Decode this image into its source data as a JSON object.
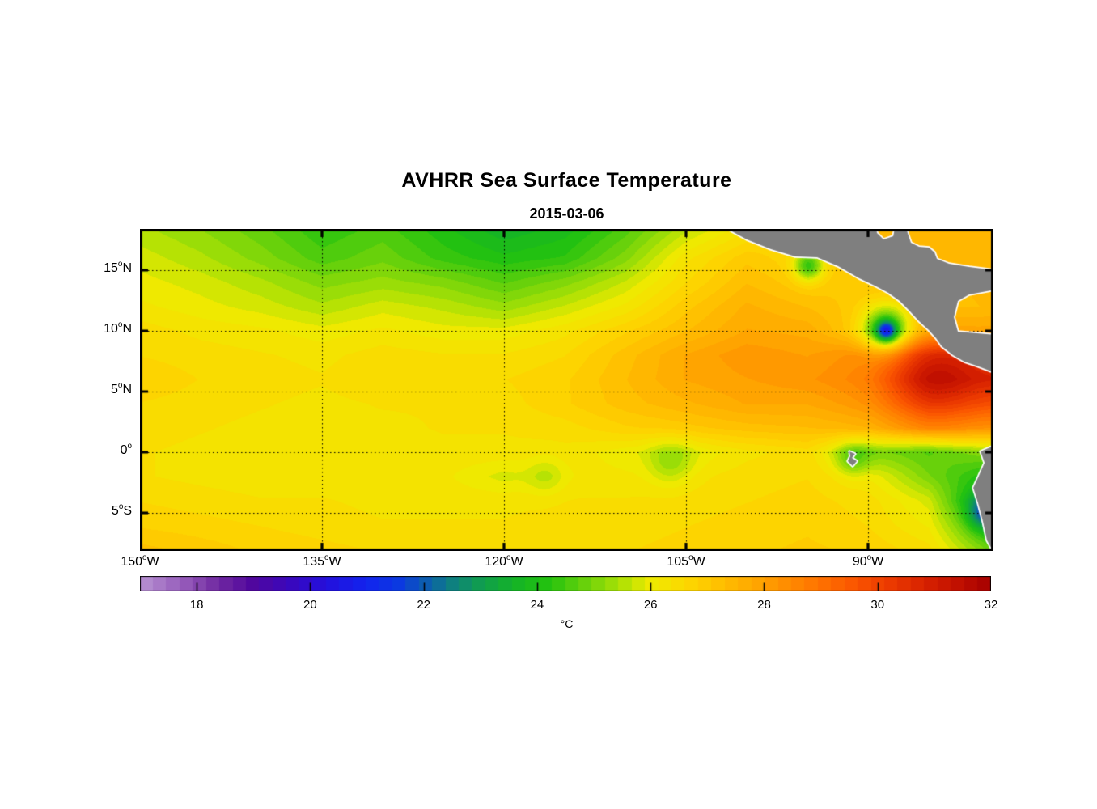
{
  "figure": {
    "title": "AVHRR Sea Surface Temperature",
    "date": "2015-03-06",
    "background": "#ffffff",
    "land_color": "#7f7f7f",
    "coast_color": "#ffffff",
    "frame_color": "#000000"
  },
  "chart_data": {
    "type": "heatmap",
    "title": "AVHRR Sea Surface Temperature",
    "subtitle": "2015-03-06",
    "units": "°C",
    "lon_range": [
      -150,
      -79.67
    ],
    "lat_range": [
      -8.13,
      18.4
    ],
    "grid_on": true,
    "grid_lons": [
      -135,
      -120,
      -105,
      -90
    ],
    "grid_lats": [
      15,
      10,
      5,
      0,
      -5
    ],
    "x_ticks": [
      {
        "num": "150",
        "sup": "o",
        "dir": "W",
        "lon": -150
      },
      {
        "num": "135",
        "sup": "o",
        "dir": "W",
        "lon": -135
      },
      {
        "num": "120",
        "sup": "o",
        "dir": "W",
        "lon": -120
      },
      {
        "num": "105",
        "sup": "o",
        "dir": "W",
        "lon": -105
      },
      {
        "num": "90",
        "sup": "o",
        "dir": "W",
        "lon": -90
      }
    ],
    "y_ticks": [
      {
        "num": "15",
        "sup": "o",
        "dir": "N",
        "lat": 15
      },
      {
        "num": "10",
        "sup": "o",
        "dir": "N",
        "lat": 10
      },
      {
        "num": "5",
        "sup": "o",
        "dir": "N",
        "lat": 5
      },
      {
        "num": "0",
        "sup": "o",
        "dir": "",
        "lat": 0
      },
      {
        "num": "5",
        "sup": "o",
        "dir": "S",
        "lat": -5
      }
    ],
    "colorbar": {
      "min": 17,
      "max": 32,
      "levels": 64,
      "ticks": [
        18,
        20,
        22,
        24,
        26,
        28,
        30,
        32
      ],
      "label": "°C"
    },
    "colormap": [
      [
        17.0,
        "#b792d2"
      ],
      [
        17.8,
        "#9459b9"
      ],
      [
        18.4,
        "#6f28a0"
      ],
      [
        19.0,
        "#50079e"
      ],
      [
        19.6,
        "#3b07bb"
      ],
      [
        20.3,
        "#2410dc"
      ],
      [
        21.0,
        "#1224ee"
      ],
      [
        21.6,
        "#0b3ae0"
      ],
      [
        22.0,
        "#0c59b4"
      ],
      [
        22.5,
        "#0e8080"
      ],
      [
        23.0,
        "#109c50"
      ],
      [
        23.6,
        "#14b327"
      ],
      [
        24.2,
        "#23c20f"
      ],
      [
        24.8,
        "#62d00c"
      ],
      [
        25.4,
        "#a3df06"
      ],
      [
        26.0,
        "#eeea00"
      ],
      [
        26.6,
        "#fcd900"
      ],
      [
        27.2,
        "#ffc100"
      ],
      [
        27.8,
        "#ffa800"
      ],
      [
        28.4,
        "#ff8d00"
      ],
      [
        29.0,
        "#ff7100"
      ],
      [
        29.6,
        "#fa5500"
      ],
      [
        30.2,
        "#ec3b00"
      ],
      [
        30.8,
        "#d92300"
      ],
      [
        31.4,
        "#c21000"
      ],
      [
        32.0,
        "#a60000"
      ]
    ],
    "sst_grid": {
      "lons": [
        -150,
        -145,
        -140,
        -135,
        -130,
        -125,
        -120,
        -115,
        -110,
        -105,
        -100,
        -95,
        -90,
        -85,
        -80
      ],
      "lats": [
        18.4,
        16,
        14,
        12,
        10,
        8,
        6,
        4,
        2,
        0,
        -2,
        -4,
        -6,
        -8.2
      ],
      "values": [
        [
          25.5,
          25.2,
          24.8,
          24.3,
          24.6,
          24.1,
          23.6,
          23.9,
          24.6,
          25.6,
          26.3,
          27.0,
          27.4,
          27.4,
          27.4
        ],
        [
          25.8,
          25.5,
          25.1,
          24.6,
          24.9,
          24.4,
          24.1,
          24.3,
          25.1,
          26.3,
          27.0,
          26.6,
          27.2,
          27.3,
          27.4
        ],
        [
          26.0,
          25.8,
          25.5,
          25.1,
          25.3,
          25.1,
          24.7,
          25.1,
          25.7,
          26.6,
          27.3,
          26.9,
          27.1,
          27.2,
          27.4
        ],
        [
          26.2,
          26.0,
          25.8,
          25.5,
          25.8,
          25.6,
          25.3,
          25.7,
          26.2,
          27.0,
          27.6,
          27.3,
          26.9,
          27.1,
          27.3
        ],
        [
          26.5,
          26.3,
          26.2,
          26.0,
          26.2,
          26.0,
          26.0,
          26.3,
          26.8,
          27.3,
          27.8,
          27.7,
          26.8,
          27.3,
          27.8
        ],
        [
          26.6,
          26.5,
          26.4,
          26.3,
          26.5,
          26.4,
          26.4,
          26.6,
          27.2,
          27.8,
          28.2,
          28.0,
          28.4,
          29.3,
          30.2
        ],
        [
          26.8,
          26.6,
          26.5,
          26.4,
          26.6,
          26.5,
          26.6,
          26.8,
          27.3,
          27.8,
          28.0,
          28.2,
          28.6,
          29.8,
          30.6
        ],
        [
          26.6,
          26.5,
          26.4,
          26.3,
          26.4,
          26.4,
          26.5,
          26.8,
          27.2,
          27.5,
          27.8,
          27.8,
          28.2,
          29.2,
          29.6
        ],
        [
          26.5,
          26.4,
          26.3,
          26.3,
          26.3,
          26.4,
          26.4,
          26.5,
          26.8,
          27.0,
          27.2,
          27.3,
          27.5,
          28.2,
          28.2
        ],
        [
          26.4,
          26.3,
          26.3,
          26.2,
          26.2,
          26.3,
          26.3,
          26.3,
          26.0,
          25.9,
          26.3,
          26.5,
          25.1,
          24.6,
          25.2
        ],
        [
          26.4,
          26.3,
          26.2,
          26.2,
          26.2,
          26.2,
          25.8,
          26.2,
          26.2,
          26.3,
          26.5,
          26.6,
          26.2,
          25.0,
          24.0
        ],
        [
          26.6,
          26.5,
          26.4,
          26.4,
          26.3,
          26.3,
          26.3,
          26.4,
          26.4,
          26.5,
          26.6,
          26.7,
          26.5,
          25.8,
          23.0
        ],
        [
          26.8,
          26.7,
          26.6,
          26.5,
          26.4,
          26.4,
          26.4,
          26.5,
          26.5,
          26.6,
          26.7,
          26.8,
          26.6,
          26.1,
          24.0
        ],
        [
          27.2,
          27.0,
          26.8,
          26.7,
          26.6,
          26.5,
          26.6,
          26.6,
          26.6,
          26.7,
          26.8,
          26.9,
          26.8,
          26.5,
          25.0
        ]
      ]
    },
    "features": [
      {
        "name": "tehuantepec-cool",
        "lon": -94.9,
        "lat": 15.35,
        "amp": -2.3,
        "r": 0.85
      },
      {
        "name": "papagayo-cool",
        "lon": -88.4,
        "lat": 10.1,
        "amp": -3.2,
        "r": 1.35
      },
      {
        "name": "papagayo-core",
        "lon": -88.5,
        "lat": 10.0,
        "amp": -3.4,
        "r": 0.55
      },
      {
        "name": "costa-rica-warm",
        "lon": -84.8,
        "lat": 6.3,
        "amp": 1.6,
        "r": 2.6
      },
      {
        "name": "peru-upwelling",
        "lon": -80.4,
        "lat": -5.0,
        "amp": -2.2,
        "r": 0.95
      },
      {
        "name": "galapagos-cool",
        "lon": -91.3,
        "lat": -0.6,
        "amp": -1.0,
        "r": 1.0
      },
      {
        "name": "equatorial-patch",
        "lon": -106.3,
        "lat": -0.9,
        "amp": -0.8,
        "r": 1.3
      },
      {
        "name": "sw-patch",
        "lon": -116.5,
        "lat": -2.0,
        "amp": -0.5,
        "r": 1.1
      }
    ],
    "land": {
      "central_america": [
        [
          -101.67,
          18.45
        ],
        [
          -100.0,
          17.53
        ],
        [
          -98.0,
          16.73
        ],
        [
          -96.0,
          16.13
        ],
        [
          -94.2,
          16.07
        ],
        [
          -92.47,
          15.33
        ],
        [
          -90.73,
          14.33
        ],
        [
          -89.33,
          13.67
        ],
        [
          -88.33,
          13.13
        ],
        [
          -87.4,
          12.47
        ],
        [
          -86.6,
          11.67
        ],
        [
          -85.8,
          10.8
        ],
        [
          -85.0,
          10.07
        ],
        [
          -84.4,
          9.4
        ],
        [
          -83.93,
          8.73
        ],
        [
          -83.0,
          8.0
        ],
        [
          -82.07,
          7.47
        ],
        [
          -81.07,
          7.13
        ],
        [
          -79.5,
          6.53
        ],
        [
          -79.5,
          9.67
        ],
        [
          -82.6,
          9.93
        ],
        [
          -82.93,
          11.13
        ],
        [
          -82.6,
          12.47
        ],
        [
          -81.67,
          13.0
        ],
        [
          -79.5,
          13.4
        ],
        [
          -79.5,
          15.0
        ],
        [
          -81.67,
          15.27
        ],
        [
          -83.33,
          15.53
        ],
        [
          -84.33,
          15.93
        ],
        [
          -84.53,
          16.47
        ],
        [
          -85.0,
          16.87
        ],
        [
          -85.8,
          16.93
        ],
        [
          -86.47,
          17.27
        ],
        [
          -86.87,
          18.45
        ],
        [
          -87.8,
          18.45
        ],
        [
          -87.93,
          17.8
        ],
        [
          -88.73,
          17.53
        ],
        [
          -89.27,
          18.07
        ],
        [
          -89.33,
          18.45
        ]
      ],
      "south_america": [
        [
          -79.5,
          0.6
        ],
        [
          -80.73,
          0.07
        ],
        [
          -80.4,
          -0.87
        ],
        [
          -80.87,
          -1.93
        ],
        [
          -81.33,
          -2.93
        ],
        [
          -80.93,
          -4.2
        ],
        [
          -80.53,
          -5.73
        ],
        [
          -80.2,
          -7.27
        ],
        [
          -79.5,
          -8.5
        ]
      ],
      "galapagos": [
        [
          -91.53,
          0.07
        ],
        [
          -91.07,
          -0.13
        ],
        [
          -91.33,
          -0.47
        ],
        [
          -90.93,
          -0.73
        ],
        [
          -91.27,
          -1.13
        ],
        [
          -91.67,
          -0.73
        ],
        [
          -91.47,
          -0.33
        ]
      ]
    }
  }
}
